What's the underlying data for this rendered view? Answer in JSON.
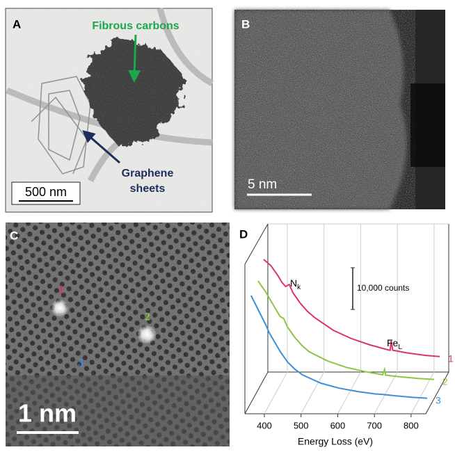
{
  "panels": [
    {
      "label": "A",
      "annotations": [
        "Fibrous carbons",
        "Graphene",
        "sheets"
      ],
      "scale_bar": "500 nm"
    },
    {
      "label": "B",
      "scale_bar": "5 nm"
    },
    {
      "label": "C",
      "markers": [
        "1",
        "2",
        "3"
      ],
      "scale_bar": "1 nm"
    },
    {
      "label": "D"
    }
  ],
  "chart_data": {
    "type": "line",
    "xlabel": "Energy Loss (eV)",
    "xlim": [
      347,
      840
    ],
    "xticks": [
      400,
      500,
      600,
      700,
      800
    ],
    "x": [
      360,
      380,
      400,
      410,
      420,
      430,
      440,
      460,
      480,
      500,
      550,
      600,
      650,
      700,
      705,
      708,
      712,
      720,
      750,
      800,
      840
    ],
    "series": [
      {
        "name": "1",
        "color": "#e0306c",
        "values": [
          27000,
          25500,
          23000,
          21500,
          20500,
          21000,
          19000,
          16500,
          14500,
          13000,
          10000,
          8000,
          6500,
          5300,
          5200,
          7500,
          5200,
          5100,
          4600,
          4000,
          3700
        ]
      },
      {
        "name": "2",
        "color": "#8cc63f",
        "values": [
          26000,
          23500,
          20500,
          19000,
          17500,
          17000,
          15000,
          12500,
          10500,
          9000,
          6800,
          5300,
          4300,
          3500,
          4800,
          3400,
          3400,
          3300,
          3000,
          2600,
          2400
        ]
      },
      {
        "name": "3",
        "color": "#3a8fd6",
        "values": [
          26000,
          22500,
          19000,
          17000,
          15500,
          14000,
          12500,
          10000,
          8300,
          7000,
          5000,
          3800,
          3000,
          2400,
          2400,
          2350,
          2350,
          2300,
          2000,
          1600,
          1400
        ]
      }
    ],
    "annotations": [
      {
        "text": "N",
        "sub": "k"
      },
      {
        "text": "Fe",
        "sub": "L"
      }
    ],
    "scale_bar": {
      "value": 10000,
      "label": "10,000 counts"
    }
  }
}
